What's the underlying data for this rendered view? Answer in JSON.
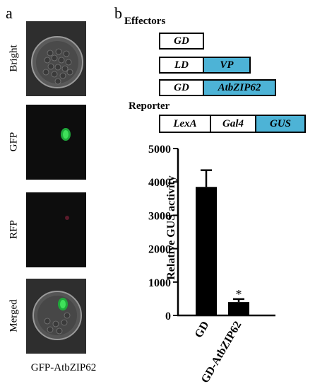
{
  "panel_a": {
    "letter": "a",
    "rows": [
      {
        "label": "Bright"
      },
      {
        "label": "GFP"
      },
      {
        "label": "RFP"
      },
      {
        "label": "Merged"
      }
    ],
    "caption": "GFP-AtbZIP62"
  },
  "panel_b": {
    "letter": "b",
    "effectors_title": "Effectors",
    "reporter_title": "Reporter",
    "effectors": [
      {
        "segments": [
          "GD"
        ]
      },
      {
        "segments": [
          "LD",
          "VP"
        ]
      },
      {
        "segments": [
          "GD",
          "AtbZIP62"
        ]
      }
    ],
    "reporter": {
      "segments": [
        "LexA",
        "Gal4",
        "GUS"
      ]
    },
    "colors": {
      "highlight": "#4db3d6"
    }
  },
  "chart_data": {
    "type": "bar",
    "categories": [
      "GD",
      "GD-AtbZIP62"
    ],
    "values": [
      3850,
      400
    ],
    "errors": [
      500,
      90
    ],
    "annotations": [
      "",
      "*"
    ],
    "title": "",
    "xlabel": "",
    "ylabel": "Relative GUS activity",
    "ylim": [
      0,
      5000
    ],
    "yticks": [
      "0",
      "1000",
      "2000",
      "3000",
      "4000",
      "5000"
    ],
    "grid": false
  }
}
